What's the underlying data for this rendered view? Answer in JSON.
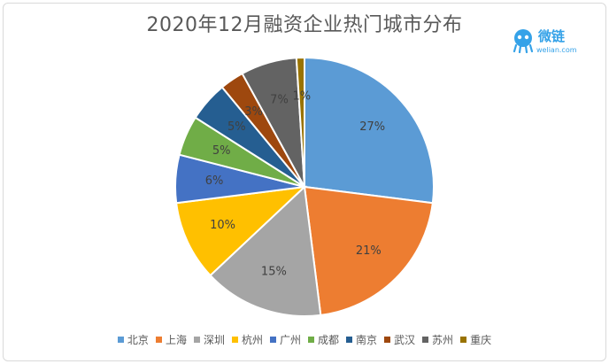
{
  "logo": {
    "name": "微链",
    "url": "welian.com"
  },
  "chart_data": {
    "type": "pie",
    "title": "2020年12月融资企业热门城市分布",
    "legend_position": "bottom",
    "start_angle": "12 o'clock, clockwise",
    "slices": [
      {
        "label": "北京",
        "value": 27,
        "display": "27%",
        "color": "#5b9bd5"
      },
      {
        "label": "上海",
        "value": 21,
        "display": "21%",
        "color": "#ed7d31"
      },
      {
        "label": "深圳",
        "value": 15,
        "display": "15%",
        "color": "#a5a5a5"
      },
      {
        "label": "杭州",
        "value": 10,
        "display": "10%",
        "color": "#ffc000"
      },
      {
        "label": "广州",
        "value": 6,
        "display": "6%",
        "color": "#4472c4"
      },
      {
        "label": "成都",
        "value": 5,
        "display": "5%",
        "color": "#70ad47"
      },
      {
        "label": "南京",
        "value": 5,
        "display": "5%",
        "color": "#255e91"
      },
      {
        "label": "武汉",
        "value": 3,
        "display": "3%",
        "color": "#9e480e"
      },
      {
        "label": "苏州",
        "value": 7,
        "display": "7%",
        "color": "#636363"
      },
      {
        "label": "重庆",
        "value": 1,
        "display": "1%",
        "color": "#997300"
      }
    ]
  }
}
